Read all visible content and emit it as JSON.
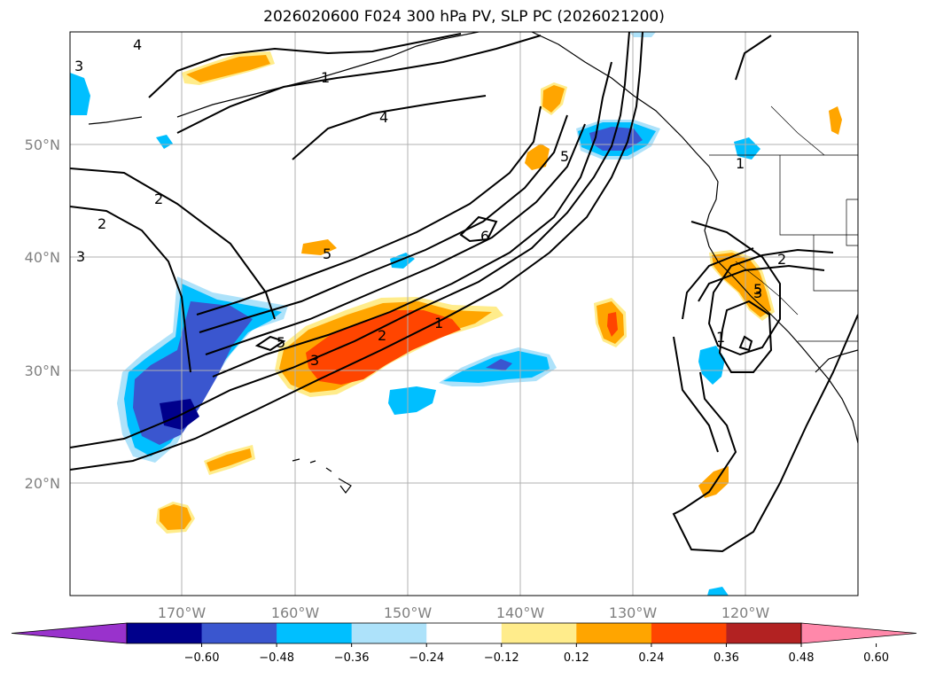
{
  "title": "2026020600 F024 300 hPa PV, SLP PC (2026021200)",
  "lat_labels": [
    "50°N",
    "40°N",
    "30°N",
    "20°N"
  ],
  "lon_labels": [
    "170°W",
    "160°W",
    "150°W",
    "140°W",
    "130°W",
    "120°W"
  ],
  "colorbar": {
    "colors": [
      "#9932cc",
      "#00008b",
      "#3a56cf",
      "#00bfff",
      "#ade2fa",
      "#ffffff",
      "#ffec8b",
      "#ffa500",
      "#ff4500",
      "#b22222",
      "#ff88aa"
    ],
    "tick_labels": [
      "−0.60",
      "−0.48",
      "−0.36",
      "−0.24",
      "−0.12",
      "0.12",
      "0.24",
      "0.36",
      "0.48",
      "0.60"
    ]
  },
  "contour_labels": [
    "4",
    "1",
    "4",
    "3",
    "2",
    "2",
    "3",
    "6",
    "5",
    "5",
    "5",
    "3",
    "2",
    "1",
    "5",
    "2",
    "3",
    "1",
    "1"
  ]
}
